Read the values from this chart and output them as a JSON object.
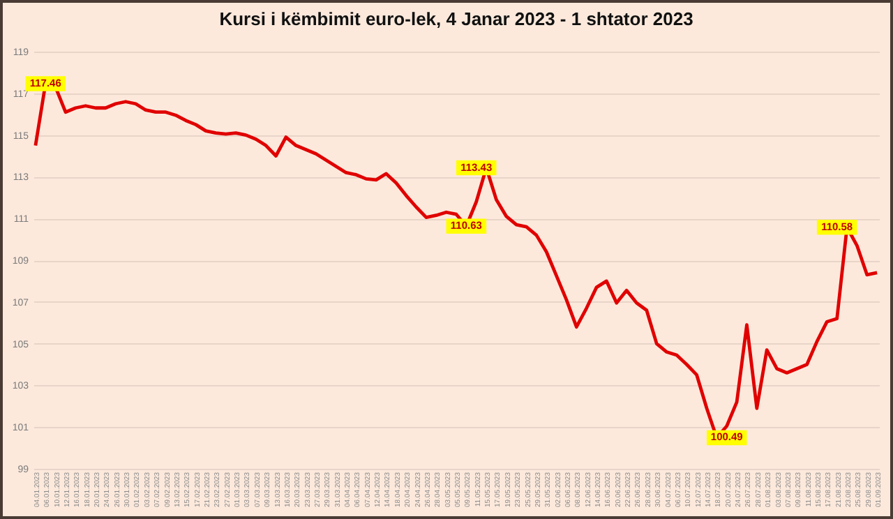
{
  "chart_data": {
    "type": "line",
    "title": "Kursi i këmbimit euro-lek, 4 Janar 2023 - 1 shtator 2023",
    "categories": [
      "04.01.2023",
      "06.01.2023",
      "10.01.2023",
      "12.01.2023",
      "16.01.2023",
      "18.01.2023",
      "20.01.2023",
      "24.01.2023",
      "26.01.2023",
      "30.01.2023",
      "01.02.2023",
      "03.02.2023",
      "07.02.2023",
      "09.02.2023",
      "13.02.2023",
      "15.02.2023",
      "17.02.2023",
      "21.02.2023",
      "23.02.2023",
      "27.02.2023",
      "01.03.2023",
      "03.03.2023",
      "07.03.2023",
      "09.03.2023",
      "13.03.2023",
      "16.03.2023",
      "20.03.2023",
      "23.03.2023",
      "27.03.2023",
      "29.03.2023",
      "31.03.2023",
      "04.04.2023",
      "06.04.2023",
      "07.04.2023",
      "12.04.2023",
      "14.04.2023",
      "18.04.2023",
      "20.04.2023",
      "24.04.2023",
      "26.04.2023",
      "28.04.2023",
      "03.05.2023",
      "05.05.2023",
      "09.05.2023",
      "11.05.2023",
      "15.05.2023",
      "17.05.2023",
      "19.05.2023",
      "23.05.2023",
      "25.05.2023",
      "29.05.2023",
      "31.05.2023",
      "02.06.2023",
      "06.06.2023",
      "08.06.2023",
      "12.06.2023",
      "14.06.2023",
      "16.06.2023",
      "20.06.2023",
      "22.06.2023",
      "26.06.2023",
      "28.06.2023",
      "30.06.2023",
      "04.07.2023",
      "06.07.2023",
      "10.07.2023",
      "12.07.2023",
      "14.07.2023",
      "18.07.2023",
      "20.07.2023",
      "24.07.2023",
      "26.07.2023",
      "28.07.2023",
      "01.08.2023",
      "03.08.2023",
      "07.08.2023",
      "09.08.2023",
      "11.08.2023",
      "15.08.2023",
      "17.08.2023",
      "21.08.2023",
      "23.08.2023",
      "25.08.2023",
      "29.08.2023",
      "01.09.2023"
    ],
    "series": [
      {
        "color": "#e00000",
        "values": [
          114.5,
          117.46,
          117.3,
          116.1,
          116.3,
          116.4,
          116.3,
          116.3,
          116.5,
          116.6,
          116.5,
          116.2,
          116.1,
          116.1,
          115.95,
          115.7,
          115.5,
          115.2,
          115.1,
          115.05,
          115.1,
          115.0,
          114.8,
          114.5,
          114.0,
          114.9,
          114.5,
          114.3,
          114.1,
          113.8,
          113.5,
          113.2,
          113.1,
          112.9,
          112.85,
          113.15,
          112.7,
          112.1,
          111.55,
          111.05,
          111.15,
          111.3,
          111.2,
          110.63,
          111.8,
          113.43,
          111.9,
          111.1,
          110.7,
          110.6,
          110.2,
          109.4,
          108.25,
          107.1,
          105.8,
          106.7,
          107.7,
          108.0,
          106.95,
          107.55,
          106.95,
          106.6,
          105.0,
          104.6,
          104.45,
          104.0,
          103.5,
          101.9,
          100.49,
          101.05,
          102.2,
          105.9,
          101.9,
          104.7,
          103.8,
          103.6,
          103.8,
          104.0,
          105.1,
          106.05,
          106.2,
          110.58,
          109.7,
          108.3,
          108.4
        ]
      }
    ],
    "ylim": [
      99,
      119
    ],
    "yticks": [
      99,
      101,
      103,
      105,
      107,
      109,
      111,
      113,
      115,
      117,
      119
    ],
    "grid": "y",
    "legend": false,
    "annotations": [
      {
        "text": "117.46",
        "x": "06.01.2023",
        "y": 117.46
      },
      {
        "text": "110.63",
        "x": "09.05.2023",
        "y": 110.63
      },
      {
        "text": "113.43",
        "x": "11.05.2023",
        "y": 113.43
      },
      {
        "text": "100.49",
        "x": "20.07.2023",
        "y": 100.49
      },
      {
        "text": "110.58",
        "x": "21.08.2023",
        "y": 110.58
      }
    ]
  }
}
